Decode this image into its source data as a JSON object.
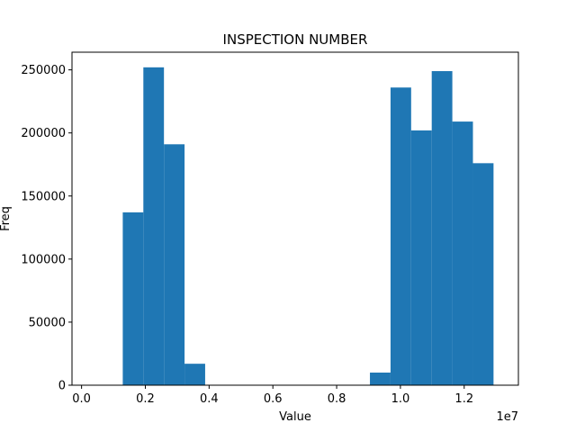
{
  "chart_data": {
    "type": "bar",
    "title": "INSPECTION NUMBER",
    "xlabel": "Value",
    "ylabel": "Freq",
    "x_offset_label": "1e7",
    "xlim": [
      -0.03,
      1.37
    ],
    "ylim": [
      0,
      264000
    ],
    "x_ticks": [
      0.0,
      0.2,
      0.4,
      0.6,
      0.8,
      1.0,
      1.2
    ],
    "x_tick_labels": [
      "0.0",
      "0.2",
      "0.4",
      "0.6",
      "0.8",
      "1.0",
      "1.2"
    ],
    "y_ticks": [
      0,
      50000,
      100000,
      150000,
      200000,
      250000
    ],
    "y_tick_labels": [
      "0",
      "50000",
      "100000",
      "150000",
      "200000",
      "250000"
    ],
    "bar_color": "#1f77b4",
    "grid": false,
    "legend": "none",
    "bins": [
      {
        "x0": 0.0,
        "x1": 0.0646,
        "count": 0
      },
      {
        "x0": 0.0646,
        "x1": 0.1292,
        "count": 0
      },
      {
        "x0": 0.1292,
        "x1": 0.1938,
        "count": 137000
      },
      {
        "x0": 0.1938,
        "x1": 0.2584,
        "count": 252000
      },
      {
        "x0": 0.2584,
        "x1": 0.323,
        "count": 191000
      },
      {
        "x0": 0.323,
        "x1": 0.3876,
        "count": 17000
      },
      {
        "x0": 0.3876,
        "x1": 0.4522,
        "count": 0
      },
      {
        "x0": 0.4522,
        "x1": 0.5168,
        "count": 0
      },
      {
        "x0": 0.5168,
        "x1": 0.5814,
        "count": 0
      },
      {
        "x0": 0.5814,
        "x1": 0.646,
        "count": 0
      },
      {
        "x0": 0.646,
        "x1": 0.7106,
        "count": 0
      },
      {
        "x0": 0.7106,
        "x1": 0.7752,
        "count": 0
      },
      {
        "x0": 0.7752,
        "x1": 0.8398,
        "count": 0
      },
      {
        "x0": 0.8398,
        "x1": 0.9044,
        "count": 0
      },
      {
        "x0": 0.9044,
        "x1": 0.969,
        "count": 10000
      },
      {
        "x0": 0.969,
        "x1": 1.0336,
        "count": 236000
      },
      {
        "x0": 1.0336,
        "x1": 1.0982,
        "count": 202000
      },
      {
        "x0": 1.0982,
        "x1": 1.1628,
        "count": 249000
      },
      {
        "x0": 1.1628,
        "x1": 1.2274,
        "count": 209000
      },
      {
        "x0": 1.2274,
        "x1": 1.292,
        "count": 176000
      }
    ]
  }
}
